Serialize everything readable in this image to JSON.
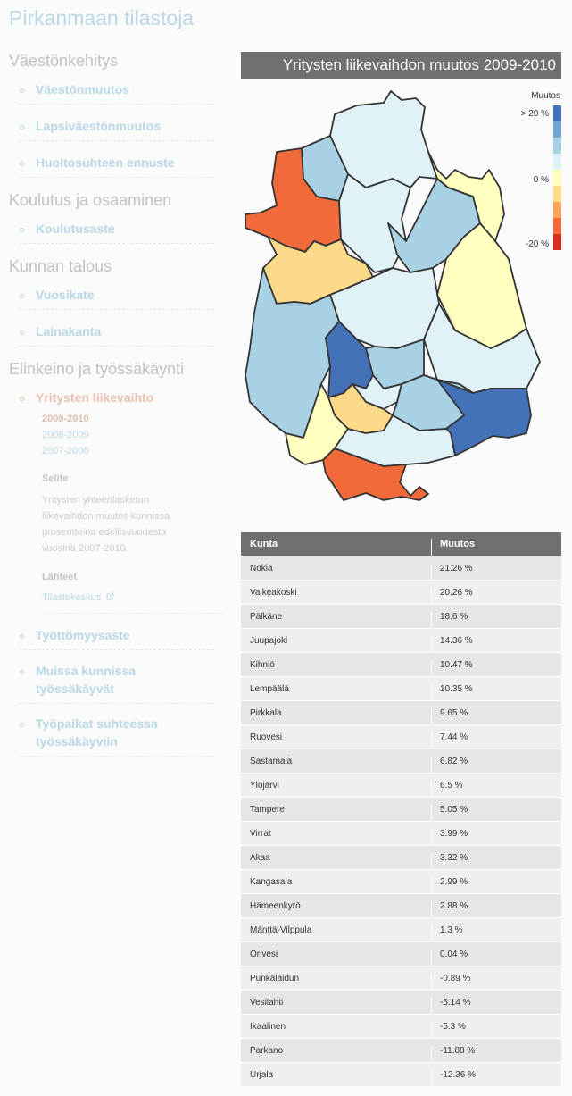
{
  "site_title": "Pirkanmaan tilastoja",
  "sections": [
    {
      "title": "Väestönkehitys",
      "items": [
        "Väestönmuutos",
        "Lapsiväestönmuutos",
        "Huoltosuhteen ennuste"
      ]
    },
    {
      "title": "Koulutus ja osaaminen",
      "items": [
        "Koulutusaste"
      ]
    },
    {
      "title": "Kunnan talous",
      "items": [
        "Vuosikate",
        "Lainakanta"
      ]
    },
    {
      "title": "Elinkeino ja työssäkäynti",
      "items": [
        "Yritysten liikevaihto",
        "Työttömyysaste",
        "Muissa kunnissa työssäkäyvät",
        "Työpaikat suhteessa työssäkäyviin"
      ]
    }
  ],
  "active_item": "Yritysten liikevaihto",
  "periods": [
    "2009-2010",
    "2008-2009",
    "2007-2008"
  ],
  "selected_period": "2009-2010",
  "description": {
    "heading": "Selite",
    "text": "Yritysten yhteenlasketun liikevaihdon muutos kunnissa prosentteina edellisvuodesta vuosina 2007-2010."
  },
  "sources": {
    "heading": "Lähteet",
    "link": "Tilastokeskus"
  },
  "map": {
    "title": "Yritysten liikevaihdon muutos 2009-2010",
    "legend": {
      "title": "Muutos",
      "labels": [
        "> 20 %",
        "0 %",
        "-20 %"
      ],
      "colors": [
        "#4472b8",
        "#74a7d1",
        "#a8d1e4",
        "#e1f2f7",
        "#ffffc0",
        "#fdd98a",
        "#fba45c",
        "#f06a3a",
        "#d7301f"
      ]
    }
  },
  "table": {
    "headers": [
      "Kunta",
      "Muutos"
    ],
    "rows": [
      [
        "Nokia",
        "21.26 %"
      ],
      [
        "Valkeakoski",
        "20.26 %"
      ],
      [
        "Pälkäne",
        "18.6 %"
      ],
      [
        "Juupajoki",
        "14.36 %"
      ],
      [
        "Kihniö",
        "10.47 %"
      ],
      [
        "Lempäälä",
        "10.35 %"
      ],
      [
        "Pirkkala",
        "9.65 %"
      ],
      [
        "Ruovesi",
        "7.44 %"
      ],
      [
        "Sastamala",
        "6.82 %"
      ],
      [
        "Ylöjärvi",
        "6.5 %"
      ],
      [
        "Tampere",
        "5.05 %"
      ],
      [
        "Virrat",
        "3.99 %"
      ],
      [
        "Akaa",
        "3.32 %"
      ],
      [
        "Kangasala",
        "2.99 %"
      ],
      [
        "Hämeenkyrö",
        "2.88 %"
      ],
      [
        "Mänttä-Vilppula",
        "1.3 %"
      ],
      [
        "Orivesi",
        "0.04 %"
      ],
      [
        "Punkalaidun",
        "-0.89 %"
      ],
      [
        "Vesilahti",
        "-5.14 %"
      ],
      [
        "Ikaalinen",
        "-5.3 %"
      ],
      [
        "Parkano",
        "-11.88 %"
      ],
      [
        "Urjala",
        "-12.36 %"
      ]
    ]
  },
  "icons": {
    "external_link": "external-link-icon",
    "bullet": "bullet-icon"
  }
}
